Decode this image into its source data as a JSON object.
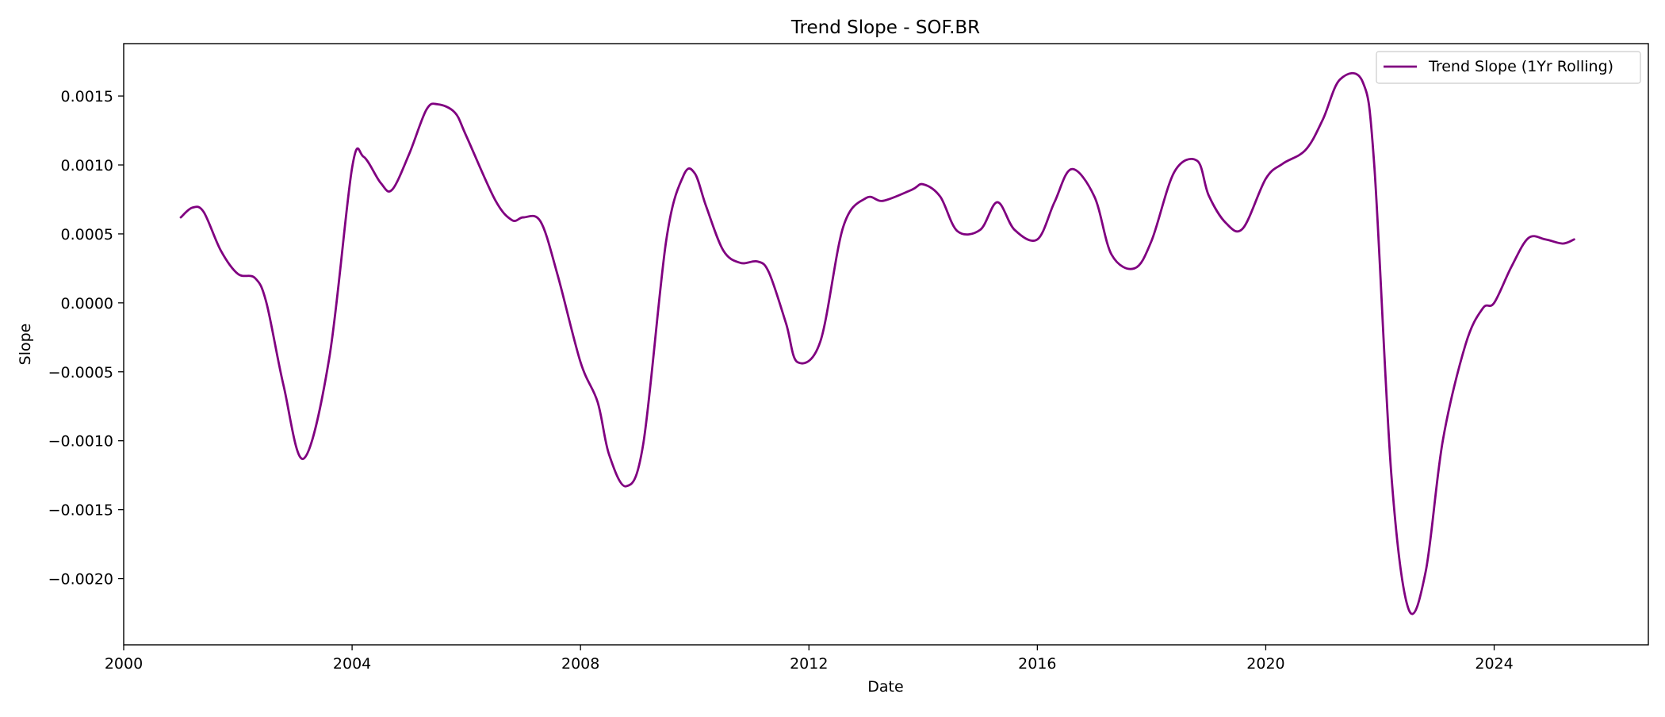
{
  "chart_data": {
    "type": "line",
    "title": "Trend Slope - SOF.BR",
    "xlabel": "Date",
    "ylabel": "Slope",
    "xlim": [
      2000.0,
      2026.7
    ],
    "ylim": [
      -0.00248,
      0.00188
    ],
    "x_ticks": [
      2000,
      2004,
      2008,
      2012,
      2016,
      2020,
      2024
    ],
    "x_tick_labels": [
      "2000",
      "2004",
      "2008",
      "2012",
      "2016",
      "2020",
      "2024"
    ],
    "y_ticks": [
      0.0015,
      0.001,
      0.0005,
      0.0,
      -0.0005,
      -0.001,
      -0.0015,
      -0.002
    ],
    "y_tick_labels": [
      "0.0015",
      "0.0010",
      "0.0005",
      "0.0000",
      "−0.0005",
      "−0.0010",
      "−0.0015",
      "−0.0020"
    ],
    "grid": false,
    "legend_position": "top-right",
    "series": [
      {
        "name": "Trend Slope (1Yr Rolling)",
        "color": "#800080",
        "x": [
          2001.0,
          2001.2,
          2001.4,
          2001.7,
          2002.0,
          2002.3,
          2002.5,
          2002.8,
          2003.15,
          2003.6,
          2004.0,
          2004.2,
          2004.5,
          2004.7,
          2005.0,
          2005.3,
          2005.5,
          2005.8,
          2006.0,
          2006.5,
          2006.8,
          2007.0,
          2007.3,
          2007.6,
          2008.0,
          2008.3,
          2008.5,
          2008.8,
          2009.1,
          2009.5,
          2009.8,
          2010.0,
          2010.2,
          2010.5,
          2010.8,
          2011.1,
          2011.3,
          2011.6,
          2011.8,
          2012.2,
          2012.6,
          2013.0,
          2013.3,
          2013.8,
          2014.0,
          2014.3,
          2014.6,
          2015.0,
          2015.3,
          2015.6,
          2016.0,
          2016.3,
          2016.6,
          2017.0,
          2017.3,
          2017.7,
          2018.0,
          2018.4,
          2018.8,
          2019.0,
          2019.3,
          2019.6,
          2020.0,
          2020.3,
          2020.7,
          2021.0,
          2021.3,
          2021.7,
          2021.9,
          2022.2,
          2022.5,
          2022.8,
          2023.1,
          2023.5,
          2023.8,
          2024.0,
          2024.3,
          2024.6,
          2024.9,
          2025.2,
          2025.4
        ],
        "y": [
          0.00062,
          0.00069,
          0.00066,
          0.00038,
          0.00021,
          0.00018,
          0.0,
          -0.0006,
          -0.00113,
          -0.0004,
          0.00098,
          0.00106,
          0.00087,
          0.00082,
          0.00108,
          0.0014,
          0.00144,
          0.00138,
          0.00121,
          0.00075,
          0.0006,
          0.00062,
          0.00059,
          0.0002,
          -0.00043,
          -0.00072,
          -0.0011,
          -0.00133,
          -0.00102,
          0.00045,
          0.00092,
          0.00094,
          0.0007,
          0.00038,
          0.00029,
          0.0003,
          0.00022,
          -0.00015,
          -0.00043,
          -0.00028,
          0.00055,
          0.00076,
          0.00074,
          0.00082,
          0.00086,
          0.00077,
          0.00052,
          0.00053,
          0.00073,
          0.00053,
          0.00046,
          0.00073,
          0.00097,
          0.00077,
          0.00035,
          0.00025,
          0.00045,
          0.00095,
          0.00103,
          0.00078,
          0.00058,
          0.00054,
          0.0009,
          0.00101,
          0.00111,
          0.00133,
          0.00162,
          0.0016,
          0.001,
          -0.00125,
          -0.00222,
          -0.00195,
          -0.001,
          -0.0003,
          -4e-05,
          0.0,
          0.00026,
          0.00047,
          0.00046,
          0.00043,
          0.00046
        ]
      }
    ]
  }
}
